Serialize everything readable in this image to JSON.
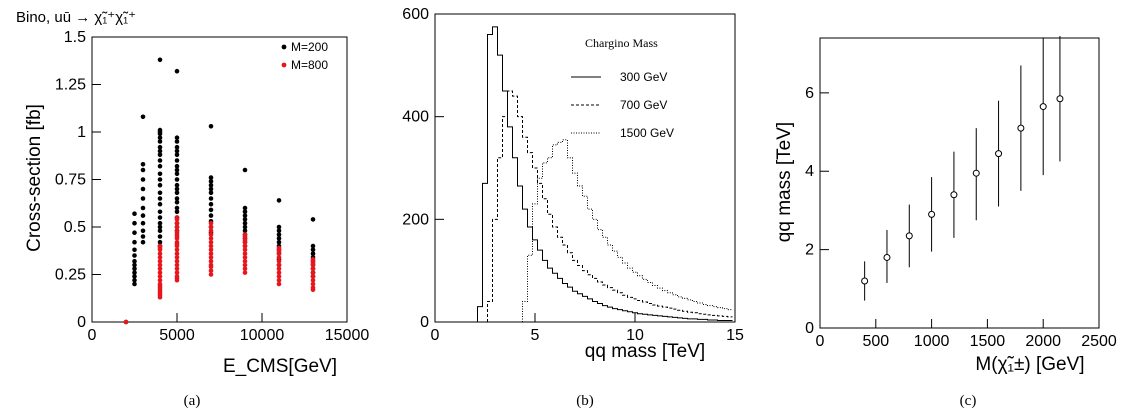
{
  "colors": {
    "black_series": "#000000",
    "red_series": "#e8161c",
    "axis": "#000000"
  },
  "chart_data": [
    {
      "type": "scatter",
      "title": "Bino, uū → χ̃₁⁺χ̃₁⁺",
      "xlabel": "E_CMS[GeV]",
      "ylabel": "Cross-section [fb]",
      "xlim": [
        0,
        15000
      ],
      "ylim": [
        0,
        1.5
      ],
      "xticks": [
        "0",
        "5000",
        "10000",
        "15000"
      ],
      "yticks": [
        "0",
        "0.25",
        "0.5",
        "0.75",
        "1",
        "1.25",
        "1.5"
      ],
      "legend": "top-right",
      "caption": "(a)",
      "series": [
        {
          "name": "M=200",
          "color": "#000000",
          "x": [
            2000,
            2500,
            2500,
            2500,
            2500,
            2500,
            2500,
            2500,
            2500,
            2500,
            2500,
            2500,
            2500,
            2500,
            3000,
            3000,
            3000,
            3000,
            3000,
            3000,
            3000,
            3000,
            3000,
            3000,
            3000,
            3000,
            4000,
            4000,
            4000,
            4000,
            4000,
            4000,
            4000,
            4000,
            4000,
            4000,
            4000,
            4000,
            4000,
            4000,
            4000,
            4000,
            4000,
            4000,
            4000,
            4000,
            4000,
            4000,
            4000,
            4000,
            4000,
            5000,
            5000,
            5000,
            5000,
            5000,
            5000,
            5000,
            5000,
            5000,
            5000,
            5000,
            5000,
            5000,
            5000,
            5000,
            5000,
            5000,
            5000,
            5000,
            5000,
            5000,
            5000,
            7000,
            7000,
            7000,
            7000,
            7000,
            7000,
            7000,
            7000,
            7000,
            7000,
            7000,
            7000,
            7000,
            9000,
            9000,
            9000,
            9000,
            9000,
            9000,
            9000,
            9000,
            9000,
            9000,
            9000,
            9000,
            11000,
            11000,
            11000,
            11000,
            11000,
            11000,
            11000,
            11000,
            11000,
            11000,
            11000,
            13000,
            13000,
            13000,
            13000,
            13000,
            13000,
            13000,
            13000,
            13000,
            13000
          ],
          "y": [
            0.0,
            0.2,
            0.22,
            0.24,
            0.26,
            0.28,
            0.3,
            0.32,
            0.35,
            0.38,
            0.42,
            0.47,
            0.52,
            0.57,
            0.42,
            0.45,
            0.48,
            0.52,
            0.56,
            0.6,
            0.65,
            0.7,
            0.75,
            0.8,
            0.83,
            1.08,
            0.45,
            0.48,
            0.5,
            0.52,
            0.55,
            0.58,
            0.62,
            0.65,
            0.68,
            0.72,
            0.75,
            0.78,
            0.82,
            0.85,
            0.88,
            0.9,
            0.92,
            0.95,
            0.97,
            0.99,
            1.0,
            1.01,
            0.4,
            0.42,
            1.38,
            0.48,
            0.5,
            0.52,
            0.55,
            0.58,
            0.6,
            0.63,
            0.65,
            0.68,
            0.7,
            0.72,
            0.75,
            0.78,
            0.8,
            0.82,
            0.85,
            0.88,
            0.9,
            0.92,
            0.95,
            0.97,
            1.32,
            0.5,
            0.53,
            0.56,
            0.59,
            0.62,
            0.65,
            0.68,
            0.7,
            0.72,
            0.74,
            0.76,
            0.47,
            1.03,
            0.42,
            0.44,
            0.46,
            0.48,
            0.5,
            0.52,
            0.54,
            0.56,
            0.58,
            0.6,
            0.4,
            0.8,
            0.33,
            0.36,
            0.38,
            0.4,
            0.42,
            0.44,
            0.46,
            0.48,
            0.5,
            0.3,
            0.64,
            0.28,
            0.3,
            0.32,
            0.34,
            0.36,
            0.38,
            0.4,
            0.26,
            0.24,
            0.54
          ]
        },
        {
          "name": "M=800",
          "color": "#e8161c",
          "x": [
            2000,
            4000,
            4000,
            4000,
            4000,
            4000,
            4000,
            4000,
            4000,
            4000,
            4000,
            4000,
            4000,
            4000,
            4000,
            4000,
            4000,
            4000,
            4000,
            4000,
            5000,
            5000,
            5000,
            5000,
            5000,
            5000,
            5000,
            5000,
            5000,
            5000,
            5000,
            5000,
            5000,
            5000,
            5000,
            5000,
            5000,
            5000,
            5000,
            5000,
            5000,
            5000,
            7000,
            7000,
            7000,
            7000,
            7000,
            7000,
            7000,
            7000,
            7000,
            7000,
            7000,
            7000,
            7000,
            7000,
            7000,
            9000,
            9000,
            9000,
            9000,
            9000,
            9000,
            9000,
            9000,
            9000,
            9000,
            9000,
            9000,
            9000,
            11000,
            11000,
            11000,
            11000,
            11000,
            11000,
            11000,
            11000,
            11000,
            11000,
            11000,
            11000,
            13000,
            13000,
            13000,
            13000,
            13000,
            13000,
            13000,
            13000,
            13000,
            13000,
            13000
          ],
          "y": [
            0.0,
            0.13,
            0.14,
            0.15,
            0.16,
            0.17,
            0.18,
            0.19,
            0.2,
            0.22,
            0.24,
            0.26,
            0.28,
            0.3,
            0.32,
            0.34,
            0.36,
            0.38,
            0.39,
            0.4,
            0.22,
            0.23,
            0.24,
            0.26,
            0.28,
            0.3,
            0.32,
            0.34,
            0.36,
            0.38,
            0.4,
            0.41,
            0.42,
            0.44,
            0.45,
            0.46,
            0.47,
            0.48,
            0.5,
            0.52,
            0.54,
            0.55,
            0.25,
            0.27,
            0.29,
            0.3,
            0.32,
            0.34,
            0.36,
            0.38,
            0.4,
            0.42,
            0.44,
            0.46,
            0.48,
            0.5,
            0.52,
            0.26,
            0.28,
            0.3,
            0.32,
            0.34,
            0.36,
            0.38,
            0.4,
            0.42,
            0.43,
            0.44,
            0.45,
            0.46,
            0.2,
            0.22,
            0.24,
            0.26,
            0.28,
            0.3,
            0.32,
            0.34,
            0.36,
            0.37,
            0.38,
            0.39,
            0.17,
            0.18,
            0.2,
            0.22,
            0.24,
            0.26,
            0.28,
            0.3,
            0.31,
            0.32,
            0.33
          ]
        }
      ]
    },
    {
      "type": "line",
      "title": "",
      "xlabel": "qq mass [TeV]",
      "ylabel": "",
      "xlim": [
        0,
        15
      ],
      "ylim": [
        0,
        600
      ],
      "xticks": [
        "0",
        "5",
        "10",
        "15"
      ],
      "yticks": [
        "0",
        "200",
        "400",
        "600"
      ],
      "legend": "top-right",
      "legend_title": "Chargino Mass",
      "caption": "(b)",
      "x": [
        2.25,
        2.5,
        2.75,
        3.0,
        3.25,
        3.5,
        3.75,
        4.0,
        4.25,
        4.5,
        4.75,
        5.0,
        5.25,
        5.5,
        5.75,
        6.0,
        6.25,
        6.5,
        6.75,
        7.0,
        7.25,
        7.5,
        7.75,
        8.0,
        8.25,
        8.5,
        8.75,
        9.0,
        9.25,
        9.5,
        9.75,
        10.0,
        10.25,
        10.5,
        10.75,
        11.0,
        11.25,
        11.5,
        11.75,
        12.0,
        12.25,
        12.5,
        12.75,
        13.0,
        13.25,
        13.5,
        13.75,
        14.0,
        14.25,
        14.5,
        14.75
      ],
      "series": [
        {
          "name": "300 GeV",
          "style": "solid",
          "values": [
            30,
            270,
            560,
            575,
            520,
            450,
            380,
            320,
            265,
            220,
            185,
            160,
            140,
            120,
            105,
            95,
            85,
            75,
            68,
            60,
            55,
            50,
            45,
            40,
            36,
            32,
            29,
            26,
            24,
            22,
            20,
            18,
            16,
            15,
            14,
            13,
            12,
            11,
            10,
            9,
            8,
            7,
            6,
            6,
            5,
            5,
            4,
            4,
            3,
            3,
            3
          ]
        },
        {
          "name": "700 GeV",
          "style": "dashed",
          "values": [
            0,
            0,
            40,
            200,
            320,
            400,
            450,
            440,
            400,
            360,
            330,
            300,
            270,
            240,
            210,
            185,
            165,
            150,
            135,
            120,
            110,
            100,
            92,
            85,
            78,
            72,
            67,
            62,
            57,
            52,
            48,
            45,
            42,
            39,
            36,
            33,
            31,
            29,
            27,
            25,
            23,
            21,
            19,
            18,
            16,
            15,
            14,
            13,
            12,
            11,
            10
          ]
        },
        {
          "name": "1500 GeV",
          "style": "dotted",
          "values": [
            0,
            0,
            0,
            0,
            0,
            0,
            0,
            0,
            0,
            40,
            130,
            230,
            280,
            310,
            320,
            345,
            350,
            355,
            320,
            290,
            265,
            245,
            220,
            200,
            180,
            165,
            150,
            138,
            126,
            115,
            105,
            97,
            90,
            83,
            77,
            71,
            66,
            61,
            57,
            53,
            49,
            46,
            43,
            40,
            37,
            34,
            32,
            30,
            28,
            26,
            24
          ]
        }
      ]
    },
    {
      "type": "scatter",
      "title": "",
      "xlabel": "M(χ̃₁±) [GeV]",
      "ylabel": "qq mass [TeV]",
      "xlim": [
        0,
        2500
      ],
      "ylim": [
        0,
        7.4
      ],
      "xticks": [
        "0",
        "500",
        "1000",
        "1500",
        "2000",
        "2500"
      ],
      "yticks": [
        "0",
        "2",
        "4",
        "6"
      ],
      "caption": "(c)",
      "points": [
        {
          "x": 400,
          "y": 1.2,
          "lo": 0.7,
          "hi": 1.7
        },
        {
          "x": 600,
          "y": 1.8,
          "lo": 1.15,
          "hi": 2.5
        },
        {
          "x": 800,
          "y": 2.35,
          "lo": 1.55,
          "hi": 3.15
        },
        {
          "x": 1000,
          "y": 2.9,
          "lo": 1.95,
          "hi": 3.85
        },
        {
          "x": 1200,
          "y": 3.4,
          "lo": 2.3,
          "hi": 4.5
        },
        {
          "x": 1400,
          "y": 3.95,
          "lo": 2.75,
          "hi": 5.1
        },
        {
          "x": 1600,
          "y": 4.45,
          "lo": 3.1,
          "hi": 5.8
        },
        {
          "x": 1800,
          "y": 5.1,
          "lo": 3.5,
          "hi": 6.7
        },
        {
          "x": 2000,
          "y": 5.65,
          "lo": 3.9,
          "hi": 7.4
        },
        {
          "x": 2150,
          "y": 5.85,
          "lo": 4.25,
          "hi": 7.45
        }
      ]
    }
  ]
}
